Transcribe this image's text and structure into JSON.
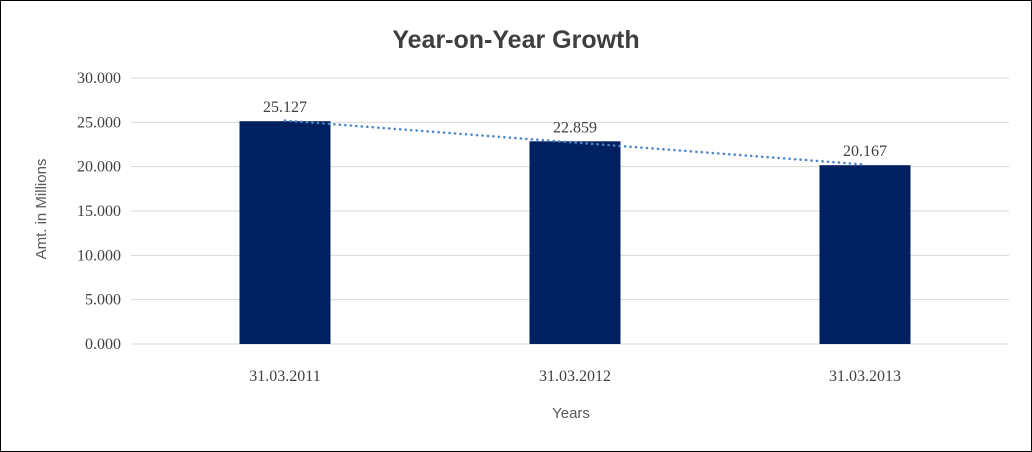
{
  "chart_data": {
    "type": "bar",
    "title": "Year-on-Year Growth",
    "xlabel": "Years",
    "ylabel": "Amt. in Millions",
    "categories": [
      "31.03.2011",
      "31.03.2012",
      "31.03.2013"
    ],
    "values": [
      25.127,
      22.859,
      20.167
    ],
    "data_labels": [
      "25.127",
      "22.859",
      "20.167"
    ],
    "ylim": [
      0,
      30
    ],
    "yticks": [
      {
        "value": 0,
        "label": "0.000"
      },
      {
        "value": 5,
        "label": "5.000"
      },
      {
        "value": 10,
        "label": "10.000"
      },
      {
        "value": 15,
        "label": "15.000"
      },
      {
        "value": 20,
        "label": "20.000"
      },
      {
        "value": 25,
        "label": "25.000"
      },
      {
        "value": 30,
        "label": "30.000"
      }
    ],
    "grid": true,
    "legend": false,
    "trendline": {
      "kind": "linear",
      "style": "dotted"
    },
    "colors": {
      "bar": "#002060",
      "trendline": "#4e87c7",
      "gridline": "#d9d9d9",
      "axis_line": "#d9d9d9",
      "title_text": "#3f3f3f",
      "tick_text": "#404040",
      "axis_title_text": "#595959",
      "background": "#ffffff",
      "border": "#000000"
    }
  }
}
